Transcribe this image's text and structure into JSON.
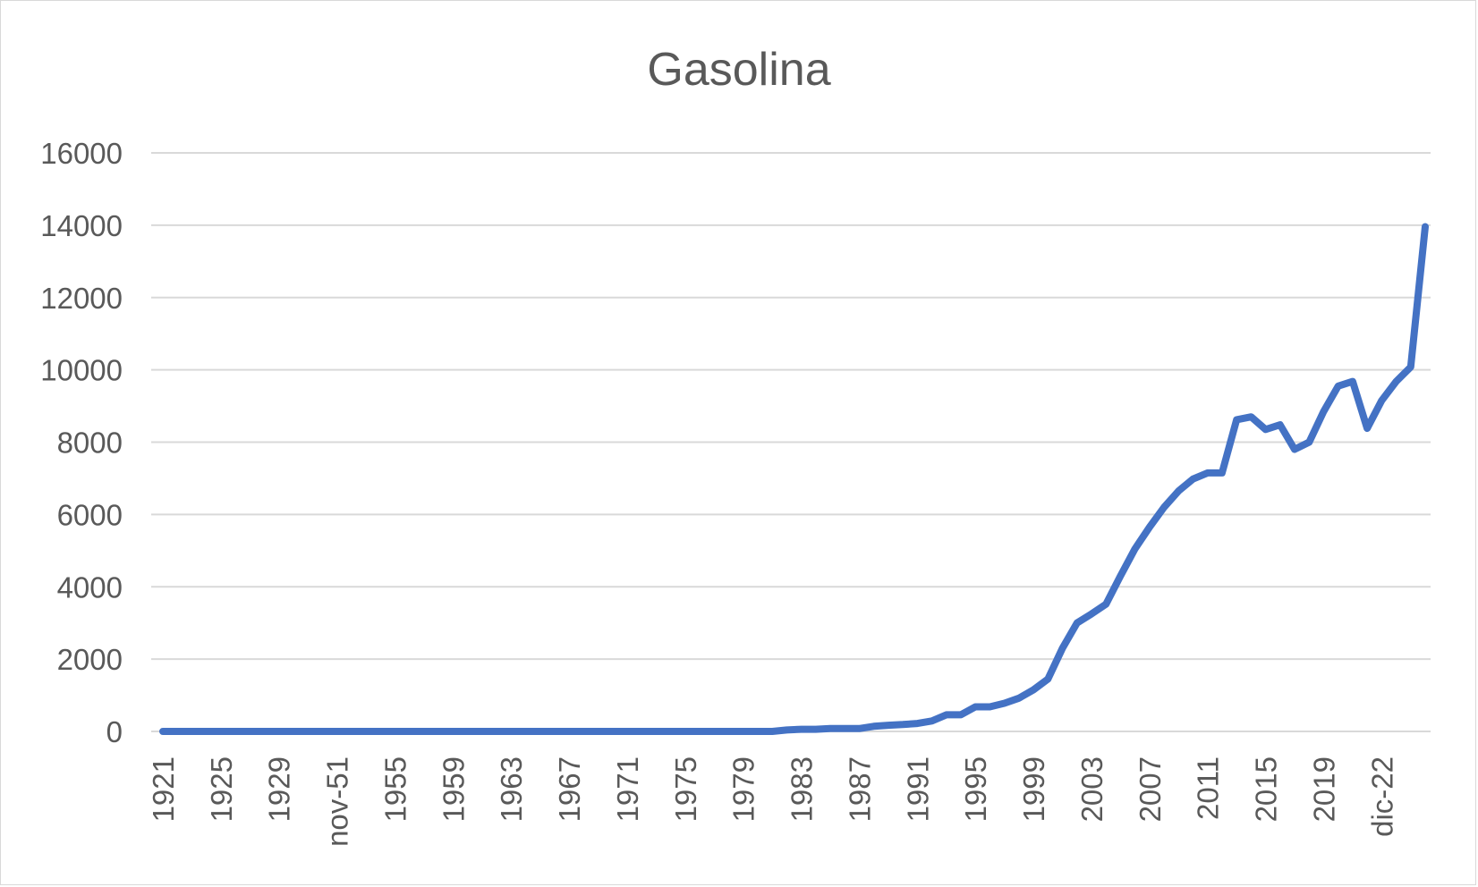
{
  "chart_data": {
    "type": "line",
    "title": "Gasolina",
    "xlabel": "",
    "ylabel": "",
    "ylim": [
      0,
      16000
    ],
    "y_ticks": [
      0,
      2000,
      4000,
      6000,
      8000,
      10000,
      12000,
      14000,
      16000
    ],
    "grid": true,
    "legend": "none",
    "x_tick_labels": [
      "1921",
      "1925",
      "1929",
      "nov-51",
      "1955",
      "1959",
      "1963",
      "1967",
      "1971",
      "1975",
      "1979",
      "1983",
      "1987",
      "1991",
      "1995",
      "1999",
      "2003",
      "2007",
      "2011",
      "2015",
      "2019",
      "dic-22"
    ],
    "series": [
      {
        "color": "#4472c4",
        "values": [
          0,
          0,
          0,
          0,
          0,
          0,
          0,
          0,
          0,
          0,
          0,
          0,
          0,
          0,
          0,
          0,
          0,
          0,
          0,
          0,
          0,
          0,
          0,
          0,
          0,
          0,
          0,
          0,
          0,
          0,
          0,
          0,
          0,
          0,
          0,
          0,
          0,
          0,
          0,
          0,
          0,
          0,
          0,
          40,
          60,
          60,
          80,
          80,
          80,
          140,
          170,
          190,
          220,
          290,
          460,
          460,
          680,
          680,
          780,
          920,
          1150,
          1450,
          2300,
          3000,
          3250,
          3520,
          4300,
          5050,
          5650,
          6200,
          6650,
          6980,
          7150,
          7150,
          8620,
          8700,
          8350,
          8480,
          7800,
          8000,
          8850,
          9550,
          9680,
          8380,
          9150,
          9680,
          10080,
          13960
        ]
      }
    ]
  }
}
